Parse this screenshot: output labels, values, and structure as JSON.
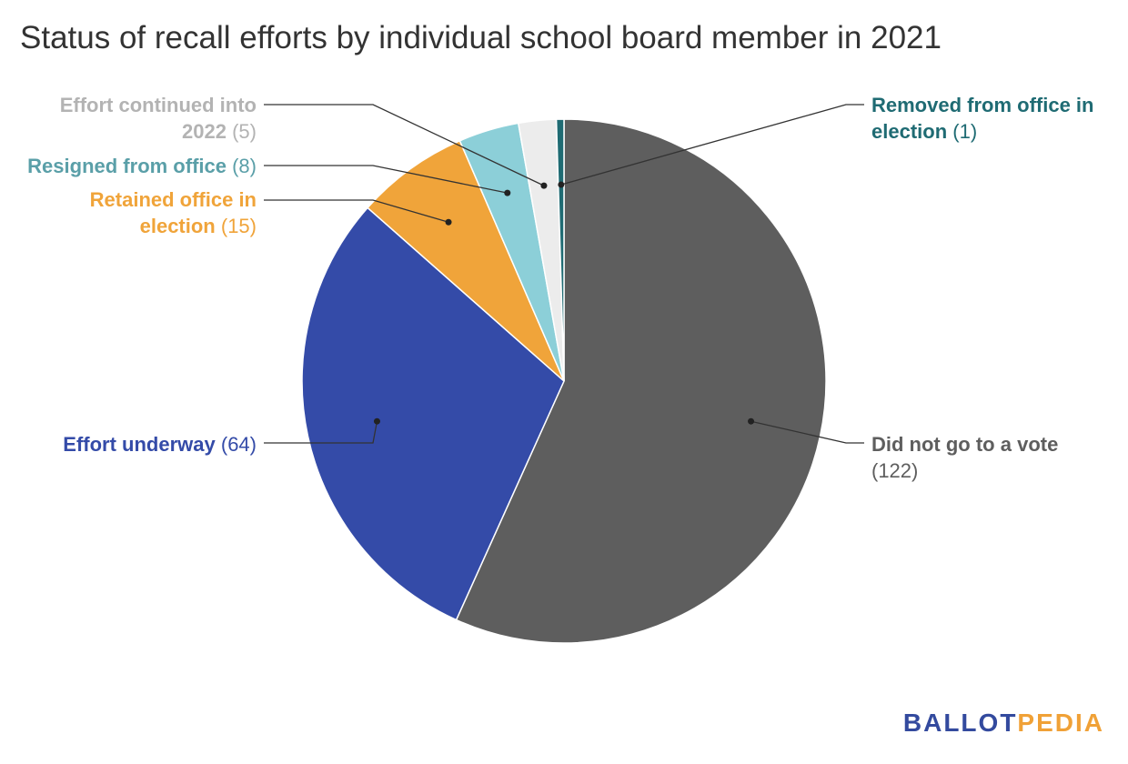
{
  "title": "Status of recall efforts by individual school board member in 2021",
  "chart_data": {
    "type": "pie",
    "title": "Status of recall efforts by individual school board member in 2021",
    "slices": [
      {
        "label": "Did not go to a vote",
        "value": 122,
        "count_text": "(122)",
        "color": "#5e5e5e",
        "label_color": "#5e5e5e"
      },
      {
        "label": "Effort underway",
        "value": 64,
        "count_text": "(64)",
        "color": "#344ba8",
        "label_color": "#344ba8"
      },
      {
        "label": "Retained office in election",
        "value": 15,
        "count_text": "(15)",
        "color": "#f0a43a",
        "label_color": "#f0a43a"
      },
      {
        "label": "Resigned from office",
        "value": 8,
        "count_text": "(8)",
        "color": "#8ccfd8",
        "label_color": "#5a9fa8"
      },
      {
        "label": "Effort continued into 2022",
        "value": 5,
        "count_text": "(5)",
        "color": "#ececec",
        "label_color": "#b3b3b3"
      },
      {
        "label": "Removed from office in election",
        "value": 1,
        "count_text": "(1)",
        "color": "#1f6b73",
        "label_color": "#1f6b73"
      }
    ]
  },
  "branding": {
    "logo_part1": "BALLOT",
    "logo_part2": "PEDIA"
  }
}
